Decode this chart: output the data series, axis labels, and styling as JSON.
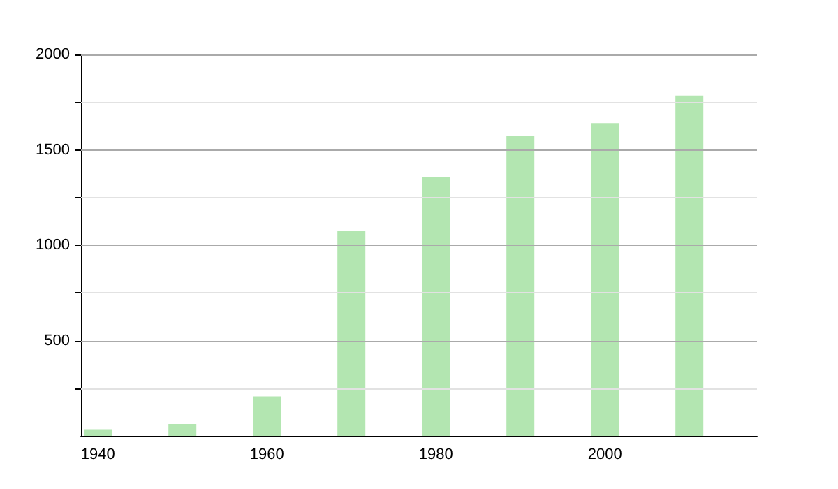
{
  "chart_data": {
    "type": "bar",
    "x": [
      1940,
      1950,
      1960,
      1970,
      1980,
      1990,
      2000,
      2010
    ],
    "values": [
      35,
      62,
      207,
      1073,
      1356,
      1571,
      1640,
      1785
    ],
    "color": "#b3e6b1",
    "xlim": [
      1938,
      2018
    ],
    "xticks": [
      1940,
      1960,
      1980,
      2000
    ],
    "ylim": [
      0,
      2000
    ],
    "yticks": [
      {
        "value": 250,
        "label": null
      },
      500,
      {
        "value": 750,
        "label": null
      },
      1000,
      {
        "value": 1250,
        "label": null
      },
      1500,
      {
        "value": 1750,
        "label": null
      },
      2000
    ],
    "grid": "y"
  }
}
